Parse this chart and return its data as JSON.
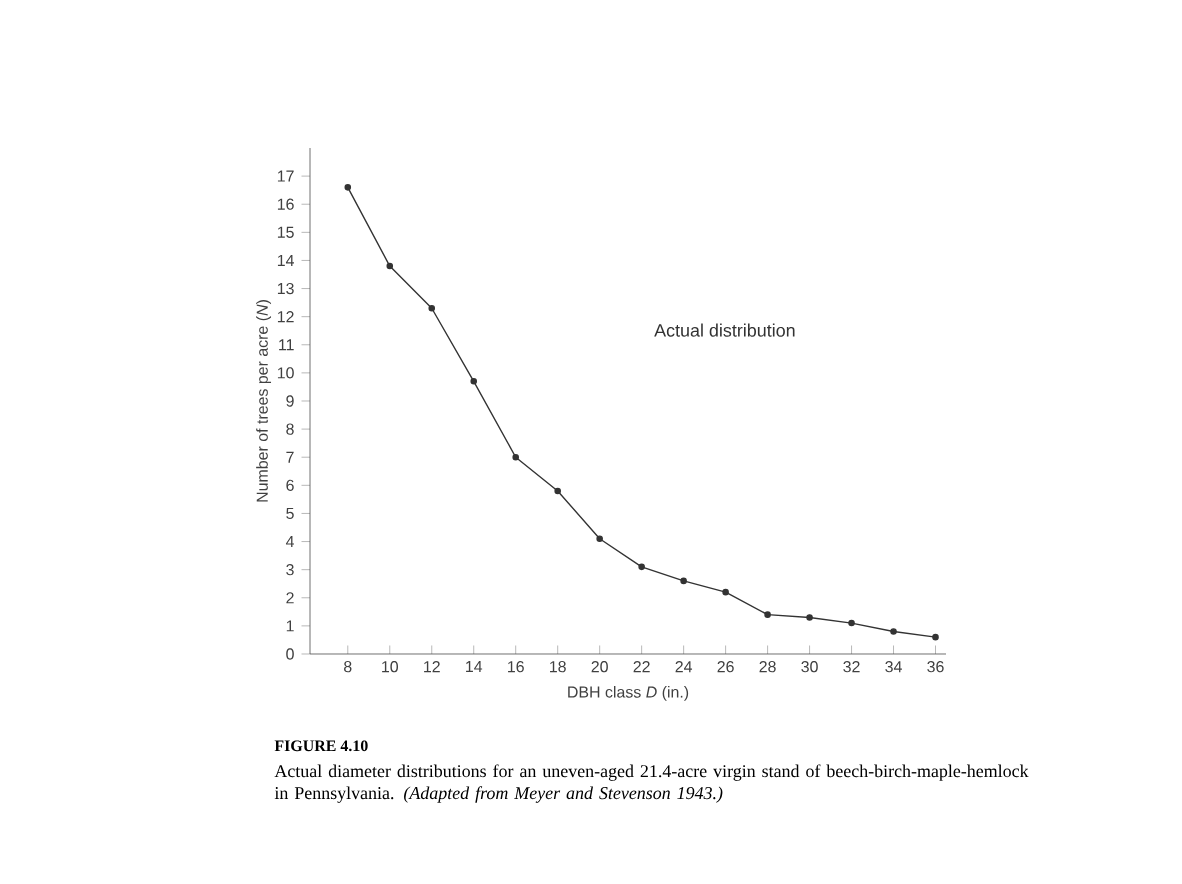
{
  "chart_data": {
    "type": "line",
    "title": "FIGURE 4.10",
    "subtitle": "Actual diameter distributions for an uneven-aged 21.4-acre virgin stand of beech-birch-maple-hemlock in Pennsylvania. *(Adapted from Meyer and Stevenson 1943.)*",
    "xlabel": "DBH class *D* (in.)",
    "ylabel": "Number of trees per acre (*N*)",
    "x": [
      8,
      10,
      12,
      14,
      16,
      18,
      20,
      22,
      24,
      26,
      28,
      30,
      32,
      34,
      36
    ],
    "series": [
      {
        "color": "#333333",
        "values": [
          16.6,
          13.8,
          12.3,
          9.7,
          7.0,
          5.8,
          4.1,
          3.1,
          2.6,
          2.2,
          1.4,
          1.3,
          1.1,
          0.8,
          0.6
        ]
      }
    ],
    "annotations": [
      "Actual distribution"
    ],
    "xlim": [
      6.2,
      36.5
    ],
    "ylim": [
      0,
      18
    ],
    "xticks": [
      8,
      10,
      12,
      14,
      16,
      18,
      20,
      22,
      24,
      26,
      28,
      30,
      32,
      34,
      36
    ],
    "yticks": [
      0,
      1,
      2,
      3,
      4,
      5,
      6,
      7,
      8,
      9,
      10,
      11,
      12,
      13,
      14,
      15,
      16,
      17
    ],
    "marker": "circle",
    "line_style": "solid",
    "grid": false
  }
}
